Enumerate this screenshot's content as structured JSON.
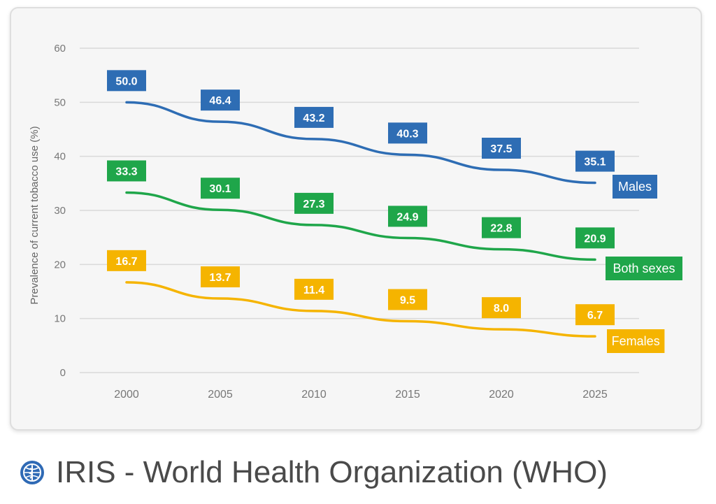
{
  "chart_data": {
    "type": "line",
    "ylabel": "Prevalence of current tobacco use (%)",
    "xlabel": "",
    "ylim": [
      0,
      60
    ],
    "yticks": [
      "0",
      "10",
      "20",
      "30",
      "40",
      "50",
      "60"
    ],
    "categories": [
      "2000",
      "2005",
      "2010",
      "2015",
      "2020",
      "2025"
    ],
    "grid": true,
    "series": [
      {
        "name": "Males",
        "color": "#2e6db4",
        "values": [
          50.0,
          46.4,
          43.2,
          40.3,
          37.5,
          35.1
        ],
        "labels": [
          "50.0",
          "46.4",
          "43.2",
          "40.3",
          "37.5",
          "35.1"
        ]
      },
      {
        "name": "Both sexes",
        "color": "#1fa64a",
        "values": [
          33.3,
          30.1,
          27.3,
          24.9,
          22.8,
          20.9
        ],
        "labels": [
          "33.3",
          "30.1",
          "27.3",
          "24.9",
          "22.8",
          "20.9"
        ]
      },
      {
        "name": "Females",
        "color": "#f5b400",
        "values": [
          16.7,
          13.7,
          11.4,
          9.5,
          8.0,
          6.7
        ],
        "labels": [
          "16.7",
          "13.7",
          "11.4",
          "9.5",
          "8.0",
          "6.7"
        ]
      }
    ]
  },
  "source": {
    "text": "IRIS - World Health Organization (WHO)",
    "icon": "who-emblem-icon"
  }
}
